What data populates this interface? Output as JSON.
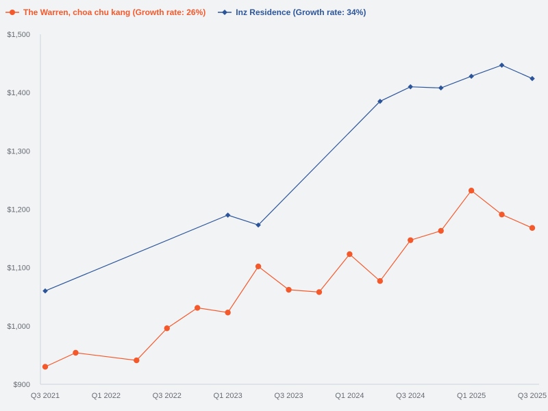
{
  "chart_data": {
    "type": "line",
    "title": "",
    "xlabel": "",
    "ylabel": "",
    "ylim": [
      900,
      1500
    ],
    "yticks": [
      900,
      1000,
      1100,
      1200,
      1300,
      1400,
      1500
    ],
    "ytick_labels": [
      "$900",
      "$1,000",
      "$1,100",
      "$1,200",
      "$1,300",
      "$1,400",
      "$1,500"
    ],
    "xlim": [
      0,
      16
    ],
    "xticks": [
      0,
      2,
      4,
      6,
      8,
      10,
      12,
      14,
      16
    ],
    "xtick_labels": [
      "Q3 2021",
      "Q1 2022",
      "Q3 2022",
      "Q1 2023",
      "Q3 2023",
      "Q1 2024",
      "Q3 2024",
      "Q1 2025",
      "Q3 2025"
    ],
    "legend_position": "top-left",
    "series": [
      {
        "name": "The Warren, choa chu kang (Growth rate: 26%)",
        "color": "#f4592c",
        "marker": "circle",
        "x": [
          0,
          1,
          3,
          4,
          5,
          6,
          7,
          8,
          9,
          10,
          11,
          12,
          13,
          14,
          15,
          16
        ],
        "values": [
          930,
          954,
          941,
          996,
          1031,
          1023,
          1102,
          1062,
          1058,
          1123,
          1077,
          1147,
          1163,
          1232,
          1191,
          1168
        ]
      },
      {
        "name": "Inz Residence (Growth rate: 34%)",
        "color": "#2c5599",
        "marker": "diamond",
        "x": [
          0,
          6,
          7,
          11,
          12,
          13,
          14,
          15,
          16
        ],
        "values": [
          1060,
          1190,
          1173,
          1385,
          1410,
          1408,
          1428,
          1447,
          1424
        ]
      }
    ]
  }
}
